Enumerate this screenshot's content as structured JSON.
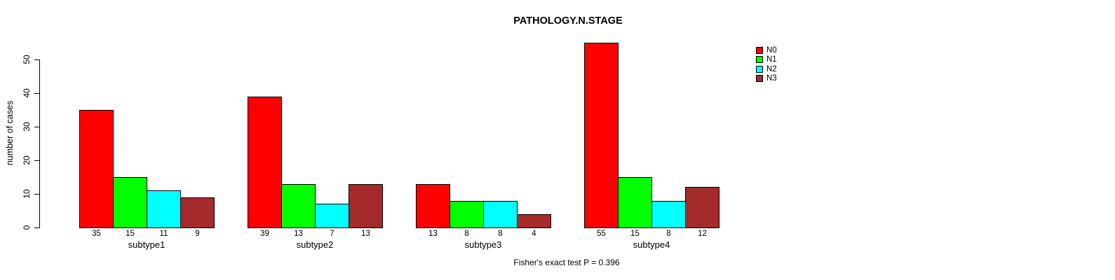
{
  "chart_data": {
    "type": "bar",
    "title": "PATHOLOGY.N.STAGE",
    "ylabel": "number of cases",
    "xlabel": "",
    "annotation": "Fisher's exact test P = 0.396",
    "categories": [
      "subtype1",
      "subtype2",
      "subtype3",
      "subtype4"
    ],
    "series": [
      {
        "name": "N0",
        "color": "#FF0000",
        "values": [
          35,
          39,
          13,
          55
        ]
      },
      {
        "name": "N1",
        "color": "#00FF00",
        "values": [
          15,
          13,
          8,
          15
        ]
      },
      {
        "name": "N2",
        "color": "#00FFFF",
        "values": [
          11,
          7,
          8,
          8
        ]
      },
      {
        "name": "N3",
        "color": "#A52A2A",
        "values": [
          9,
          13,
          4,
          12
        ]
      }
    ],
    "bar_value_labels": [
      [
        35,
        15,
        11,
        9
      ],
      [
        39,
        13,
        7,
        13
      ],
      [
        13,
        8,
        8,
        4
      ],
      [
        55,
        15,
        8,
        12
      ]
    ],
    "yticks": [
      0,
      10,
      20,
      30,
      40,
      50
    ],
    "ylim": [
      0,
      55
    ],
    "grid": false,
    "legend_position": "top-right"
  }
}
